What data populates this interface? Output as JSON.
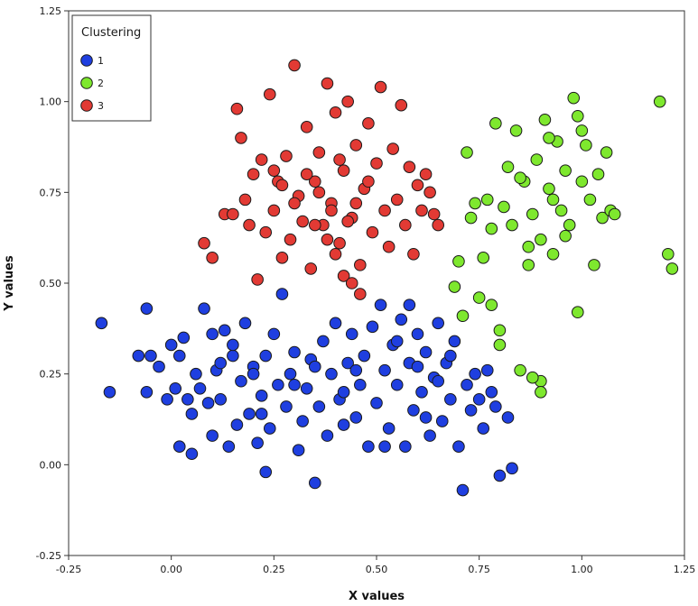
{
  "chart_data": {
    "type": "scatter",
    "xlabel": "X values",
    "ylabel": "Y values",
    "xlim": [
      -0.25,
      1.25
    ],
    "ylim": [
      -0.25,
      1.25
    ],
    "xticks": [
      "-0.25",
      "0.00",
      "0.25",
      "0.50",
      "0.75",
      "1.00",
      "1.25"
    ],
    "yticks": [
      "-0.25",
      "0.00",
      "0.25",
      "0.50",
      "0.75",
      "1.00",
      "1.25"
    ],
    "grid": false,
    "legend": {
      "title": "Clustering",
      "position": "top-left"
    },
    "series": [
      {
        "name": "1",
        "color": "#1f3fe0",
        "points": [
          [
            -0.17,
            0.39
          ],
          [
            -0.15,
            0.2
          ],
          [
            -0.08,
            0.3
          ],
          [
            -0.06,
            0.43
          ],
          [
            -0.06,
            0.2
          ],
          [
            -0.05,
            0.3
          ],
          [
            -0.03,
            0.27
          ],
          [
            -0.01,
            0.18
          ],
          [
            0.0,
            0.33
          ],
          [
            0.01,
            0.21
          ],
          [
            0.02,
            0.3
          ],
          [
            0.03,
            0.35
          ],
          [
            0.04,
            0.18
          ],
          [
            0.05,
            0.03
          ],
          [
            0.06,
            0.25
          ],
          [
            0.07,
            0.21
          ],
          [
            0.08,
            0.43
          ],
          [
            0.09,
            0.17
          ],
          [
            0.1,
            0.36
          ],
          [
            0.11,
            0.26
          ],
          [
            0.12,
            0.18
          ],
          [
            0.13,
            0.37
          ],
          [
            0.14,
            0.05
          ],
          [
            0.15,
            0.3
          ],
          [
            0.16,
            0.11
          ],
          [
            0.17,
            0.23
          ],
          [
            0.18,
            0.39
          ],
          [
            0.19,
            0.14
          ],
          [
            0.2,
            0.27
          ],
          [
            0.21,
            0.06
          ],
          [
            0.22,
            0.19
          ],
          [
            0.23,
            0.3
          ],
          [
            0.24,
            0.1
          ],
          [
            0.25,
            0.36
          ],
          [
            0.26,
            0.22
          ],
          [
            0.27,
            0.47
          ],
          [
            0.28,
            0.16
          ],
          [
            0.29,
            0.25
          ],
          [
            0.3,
            0.31
          ],
          [
            0.31,
            0.04
          ],
          [
            0.32,
            0.12
          ],
          [
            0.33,
            0.21
          ],
          [
            0.34,
            0.29
          ],
          [
            0.35,
            -0.05
          ],
          [
            0.36,
            0.16
          ],
          [
            0.37,
            0.34
          ],
          [
            0.38,
            0.08
          ],
          [
            0.39,
            0.25
          ],
          [
            0.4,
            0.39
          ],
          [
            0.41,
            0.18
          ],
          [
            0.42,
            0.11
          ],
          [
            0.43,
            0.28
          ],
          [
            0.44,
            0.36
          ],
          [
            0.45,
            0.13
          ],
          [
            0.46,
            0.22
          ],
          [
            0.47,
            0.3
          ],
          [
            0.48,
            0.05
          ],
          [
            0.49,
            0.38
          ],
          [
            0.5,
            0.17
          ],
          [
            0.51,
            0.44
          ],
          [
            0.52,
            0.26
          ],
          [
            0.53,
            0.1
          ],
          [
            0.54,
            0.33
          ],
          [
            0.55,
            0.22
          ],
          [
            0.56,
            0.4
          ],
          [
            0.57,
            0.05
          ],
          [
            0.58,
            0.28
          ],
          [
            0.59,
            0.15
          ],
          [
            0.6,
            0.36
          ],
          [
            0.61,
            0.2
          ],
          [
            0.62,
            0.31
          ],
          [
            0.63,
            0.08
          ],
          [
            0.64,
            0.24
          ],
          [
            0.65,
            0.39
          ],
          [
            0.66,
            0.12
          ],
          [
            0.67,
            0.28
          ],
          [
            0.68,
            0.18
          ],
          [
            0.69,
            0.34
          ],
          [
            0.7,
            0.05
          ],
          [
            0.71,
            -0.07
          ],
          [
            0.72,
            0.22
          ],
          [
            0.73,
            0.15
          ],
          [
            0.74,
            0.25
          ],
          [
            0.76,
            0.1
          ],
          [
            0.77,
            0.26
          ],
          [
            0.78,
            0.2
          ],
          [
            0.79,
            0.16
          ],
          [
            0.8,
            -0.03
          ],
          [
            0.82,
            0.13
          ],
          [
            0.83,
            -0.01
          ],
          [
            0.2,
            0.25
          ],
          [
            0.15,
            0.33
          ],
          [
            0.05,
            0.14
          ],
          [
            0.1,
            0.08
          ],
          [
            0.3,
            0.22
          ],
          [
            0.35,
            0.27
          ],
          [
            0.45,
            0.26
          ],
          [
            0.55,
            0.34
          ],
          [
            0.6,
            0.27
          ],
          [
            0.65,
            0.23
          ],
          [
            0.02,
            0.05
          ],
          [
            0.12,
            0.28
          ],
          [
            0.22,
            0.14
          ],
          [
            0.42,
            0.2
          ],
          [
            0.52,
            0.05
          ],
          [
            0.58,
            0.44
          ],
          [
            0.62,
            0.13
          ],
          [
            0.68,
            0.3
          ],
          [
            0.75,
            0.18
          ],
          [
            0.23,
            -0.02
          ]
        ]
      },
      {
        "name": "2",
        "color": "#7ee82e",
        "points": [
          [
            0.69,
            0.49
          ],
          [
            0.7,
            0.56
          ],
          [
            0.71,
            0.41
          ],
          [
            0.72,
            0.86
          ],
          [
            0.73,
            0.68
          ],
          [
            0.74,
            0.72
          ],
          [
            0.75,
            0.46
          ],
          [
            0.76,
            0.57
          ],
          [
            0.77,
            0.73
          ],
          [
            0.78,
            0.65
          ],
          [
            0.79,
            0.94
          ],
          [
            0.8,
            0.33
          ],
          [
            0.81,
            0.71
          ],
          [
            0.82,
            0.82
          ],
          [
            0.83,
            0.66
          ],
          [
            0.84,
            0.92
          ],
          [
            0.85,
            0.26
          ],
          [
            0.86,
            0.78
          ],
          [
            0.87,
            0.55
          ],
          [
            0.88,
            0.69
          ],
          [
            0.89,
            0.84
          ],
          [
            0.9,
            0.62
          ],
          [
            0.91,
            0.95
          ],
          [
            0.92,
            0.76
          ],
          [
            0.93,
            0.58
          ],
          [
            0.94,
            0.89
          ],
          [
            0.95,
            0.7
          ],
          [
            0.96,
            0.81
          ],
          [
            0.97,
            0.66
          ],
          [
            0.98,
            1.01
          ],
          [
            0.99,
            0.42
          ],
          [
            1.0,
            0.78
          ],
          [
            1.01,
            0.88
          ],
          [
            1.02,
            0.73
          ],
          [
            1.03,
            0.55
          ],
          [
            1.04,
            0.8
          ],
          [
            1.05,
            0.68
          ],
          [
            1.06,
            0.86
          ],
          [
            1.07,
            0.7
          ],
          [
            1.08,
            0.69
          ],
          [
            0.9,
            0.23
          ],
          [
            0.88,
            0.24
          ],
          [
            0.9,
            0.2
          ],
          [
            0.8,
            0.37
          ],
          [
            0.78,
            0.44
          ],
          [
            1.19,
            1.0
          ],
          [
            1.21,
            0.58
          ],
          [
            1.22,
            0.54
          ],
          [
            0.85,
            0.79
          ],
          [
            0.93,
            0.73
          ],
          [
            0.96,
            0.63
          ],
          [
            0.92,
            0.9
          ],
          [
            0.99,
            0.96
          ],
          [
            1.0,
            0.92
          ],
          [
            0.87,
            0.6
          ]
        ]
      },
      {
        "name": "3",
        "color": "#e23a34",
        "points": [
          [
            0.08,
            0.61
          ],
          [
            0.1,
            0.57
          ],
          [
            0.13,
            0.69
          ],
          [
            0.15,
            0.69
          ],
          [
            0.16,
            0.98
          ],
          [
            0.17,
            0.9
          ],
          [
            0.18,
            0.73
          ],
          [
            0.19,
            0.66
          ],
          [
            0.2,
            0.8
          ],
          [
            0.21,
            0.51
          ],
          [
            0.22,
            0.84
          ],
          [
            0.23,
            0.64
          ],
          [
            0.24,
            1.02
          ],
          [
            0.25,
            0.7
          ],
          [
            0.26,
            0.78
          ],
          [
            0.27,
            0.57
          ],
          [
            0.28,
            0.85
          ],
          [
            0.29,
            0.62
          ],
          [
            0.3,
            1.1
          ],
          [
            0.31,
            0.74
          ],
          [
            0.32,
            0.67
          ],
          [
            0.33,
            0.93
          ],
          [
            0.34,
            0.54
          ],
          [
            0.35,
            0.78
          ],
          [
            0.36,
            0.86
          ],
          [
            0.37,
            0.66
          ],
          [
            0.38,
            1.05
          ],
          [
            0.39,
            0.72
          ],
          [
            0.4,
            0.97
          ],
          [
            0.41,
            0.61
          ],
          [
            0.42,
            0.81
          ],
          [
            0.43,
            1.0
          ],
          [
            0.44,
            0.68
          ],
          [
            0.45,
            0.88
          ],
          [
            0.46,
            0.55
          ],
          [
            0.47,
            0.76
          ],
          [
            0.48,
            0.94
          ],
          [
            0.49,
            0.64
          ],
          [
            0.5,
            0.83
          ],
          [
            0.51,
            1.04
          ],
          [
            0.52,
            0.7
          ],
          [
            0.53,
            0.6
          ],
          [
            0.54,
            0.87
          ],
          [
            0.55,
            0.73
          ],
          [
            0.56,
            0.99
          ],
          [
            0.57,
            0.66
          ],
          [
            0.58,
            0.82
          ],
          [
            0.59,
            0.58
          ],
          [
            0.6,
            0.77
          ],
          [
            0.61,
            0.7
          ],
          [
            0.38,
            0.62
          ],
          [
            0.4,
            0.58
          ],
          [
            0.42,
            0.52
          ],
          [
            0.44,
            0.5
          ],
          [
            0.46,
            0.47
          ],
          [
            0.36,
            0.75
          ],
          [
            0.33,
            0.8
          ],
          [
            0.3,
            0.72
          ],
          [
            0.27,
            0.77
          ],
          [
            0.25,
            0.81
          ],
          [
            0.48,
            0.78
          ],
          [
            0.45,
            0.72
          ],
          [
            0.43,
            0.67
          ],
          [
            0.62,
            0.8
          ],
          [
            0.63,
            0.75
          ],
          [
            0.64,
            0.69
          ],
          [
            0.65,
            0.66
          ],
          [
            0.35,
            0.66
          ],
          [
            0.39,
            0.7
          ],
          [
            0.41,
            0.84
          ]
        ]
      }
    ]
  }
}
